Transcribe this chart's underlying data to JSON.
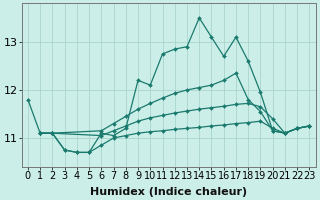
{
  "xlabel": "Humidex (Indice chaleur)",
  "bg_color": "#cceee8",
  "grid_color": "#aad4cc",
  "line_color": "#1a7a6e",
  "x_values": [
    0,
    1,
    2,
    3,
    4,
    5,
    6,
    7,
    8,
    9,
    10,
    11,
    12,
    13,
    14,
    15,
    16,
    17,
    18,
    19,
    20,
    21,
    22,
    23
  ],
  "line_main": [
    11.8,
    11.1,
    11.1,
    10.75,
    10.7,
    10.7,
    11.1,
    11.05,
    11.2,
    12.2,
    12.1,
    12.75,
    12.85,
    12.9,
    13.5,
    13.1,
    12.7,
    13.1,
    12.6,
    11.95,
    11.15,
    11.1,
    11.2,
    11.25
  ],
  "line_smooth1": [
    null,
    11.1,
    11.1,
    null,
    null,
    null,
    11.15,
    11.3,
    11.45,
    11.6,
    11.72,
    11.83,
    11.93,
    12.0,
    12.05,
    12.1,
    12.2,
    12.35,
    11.8,
    11.55,
    11.15,
    11.1,
    11.2,
    11.25
  ],
  "line_smooth2": [
    null,
    11.1,
    11.1,
    null,
    null,
    null,
    11.05,
    11.15,
    11.25,
    11.35,
    11.42,
    11.47,
    11.52,
    11.56,
    11.6,
    11.63,
    11.66,
    11.7,
    11.72,
    11.65,
    11.4,
    11.1,
    11.2,
    11.25
  ],
  "line_smooth3": [
    null,
    11.1,
    11.1,
    10.75,
    10.7,
    10.7,
    10.85,
    11.0,
    11.05,
    11.1,
    11.13,
    11.15,
    11.18,
    11.2,
    11.22,
    11.25,
    11.27,
    11.3,
    11.32,
    11.35,
    11.2,
    11.1,
    11.2,
    11.25
  ],
  "ylim": [
    10.4,
    13.8
  ],
  "yticks": [
    11,
    12,
    13
  ],
  "xlim": [
    -0.5,
    23.5
  ],
  "tick_fontsize": 7,
  "xlabel_fontsize": 8
}
